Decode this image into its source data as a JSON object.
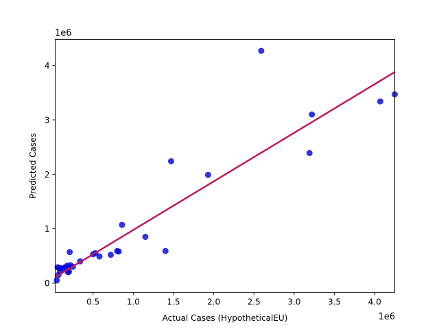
{
  "chart_data": {
    "type": "scatter",
    "title": "",
    "xlabel": "Actual Cases (HypotheticalEU)",
    "ylabel": "Predicted Cases",
    "x_scale_label": "1e6",
    "y_scale_label": "1e6",
    "xlim": [
      0.03,
      4.25
    ],
    "ylim": [
      -0.17,
      4.48
    ],
    "x_ticks": [
      0.5,
      1.0,
      1.5,
      2.0,
      2.5,
      3.0,
      3.5,
      4.0
    ],
    "x_tick_labels": [
      "0.5",
      "1.0",
      "1.5",
      "2.0",
      "2.5",
      "3.0",
      "3.5",
      "4.0"
    ],
    "y_ticks": [
      0,
      1,
      2,
      3,
      4
    ],
    "y_tick_labels": [
      "0",
      "1",
      "2",
      "3",
      "4"
    ],
    "grid": false,
    "point_color": "#0000dd",
    "line_color": "#c0185a",
    "series": [
      {
        "x": [
          0.05,
          0.06,
          0.07,
          0.08,
          0.09,
          0.12,
          0.15,
          0.18,
          0.19,
          0.2,
          0.21,
          0.22,
          0.25,
          0.34,
          0.5,
          0.53,
          0.58,
          0.72,
          0.8,
          0.82,
          0.86,
          1.15,
          1.4,
          1.47,
          1.93,
          2.59,
          3.19,
          3.22,
          4.07,
          4.25
        ],
        "y": [
          0.05,
          0.29,
          0.15,
          0.28,
          0.21,
          0.27,
          0.29,
          0.32,
          0.2,
          0.21,
          0.57,
          0.33,
          0.3,
          0.4,
          0.53,
          0.55,
          0.49,
          0.52,
          0.59,
          0.58,
          1.07,
          0.85,
          0.59,
          2.24,
          1.99,
          4.27,
          2.39,
          3.1,
          3.34,
          3.47
        ]
      }
    ],
    "regression_line": {
      "x": [
        0.03,
        4.25
      ],
      "y": [
        0.11,
        3.88
      ]
    }
  }
}
